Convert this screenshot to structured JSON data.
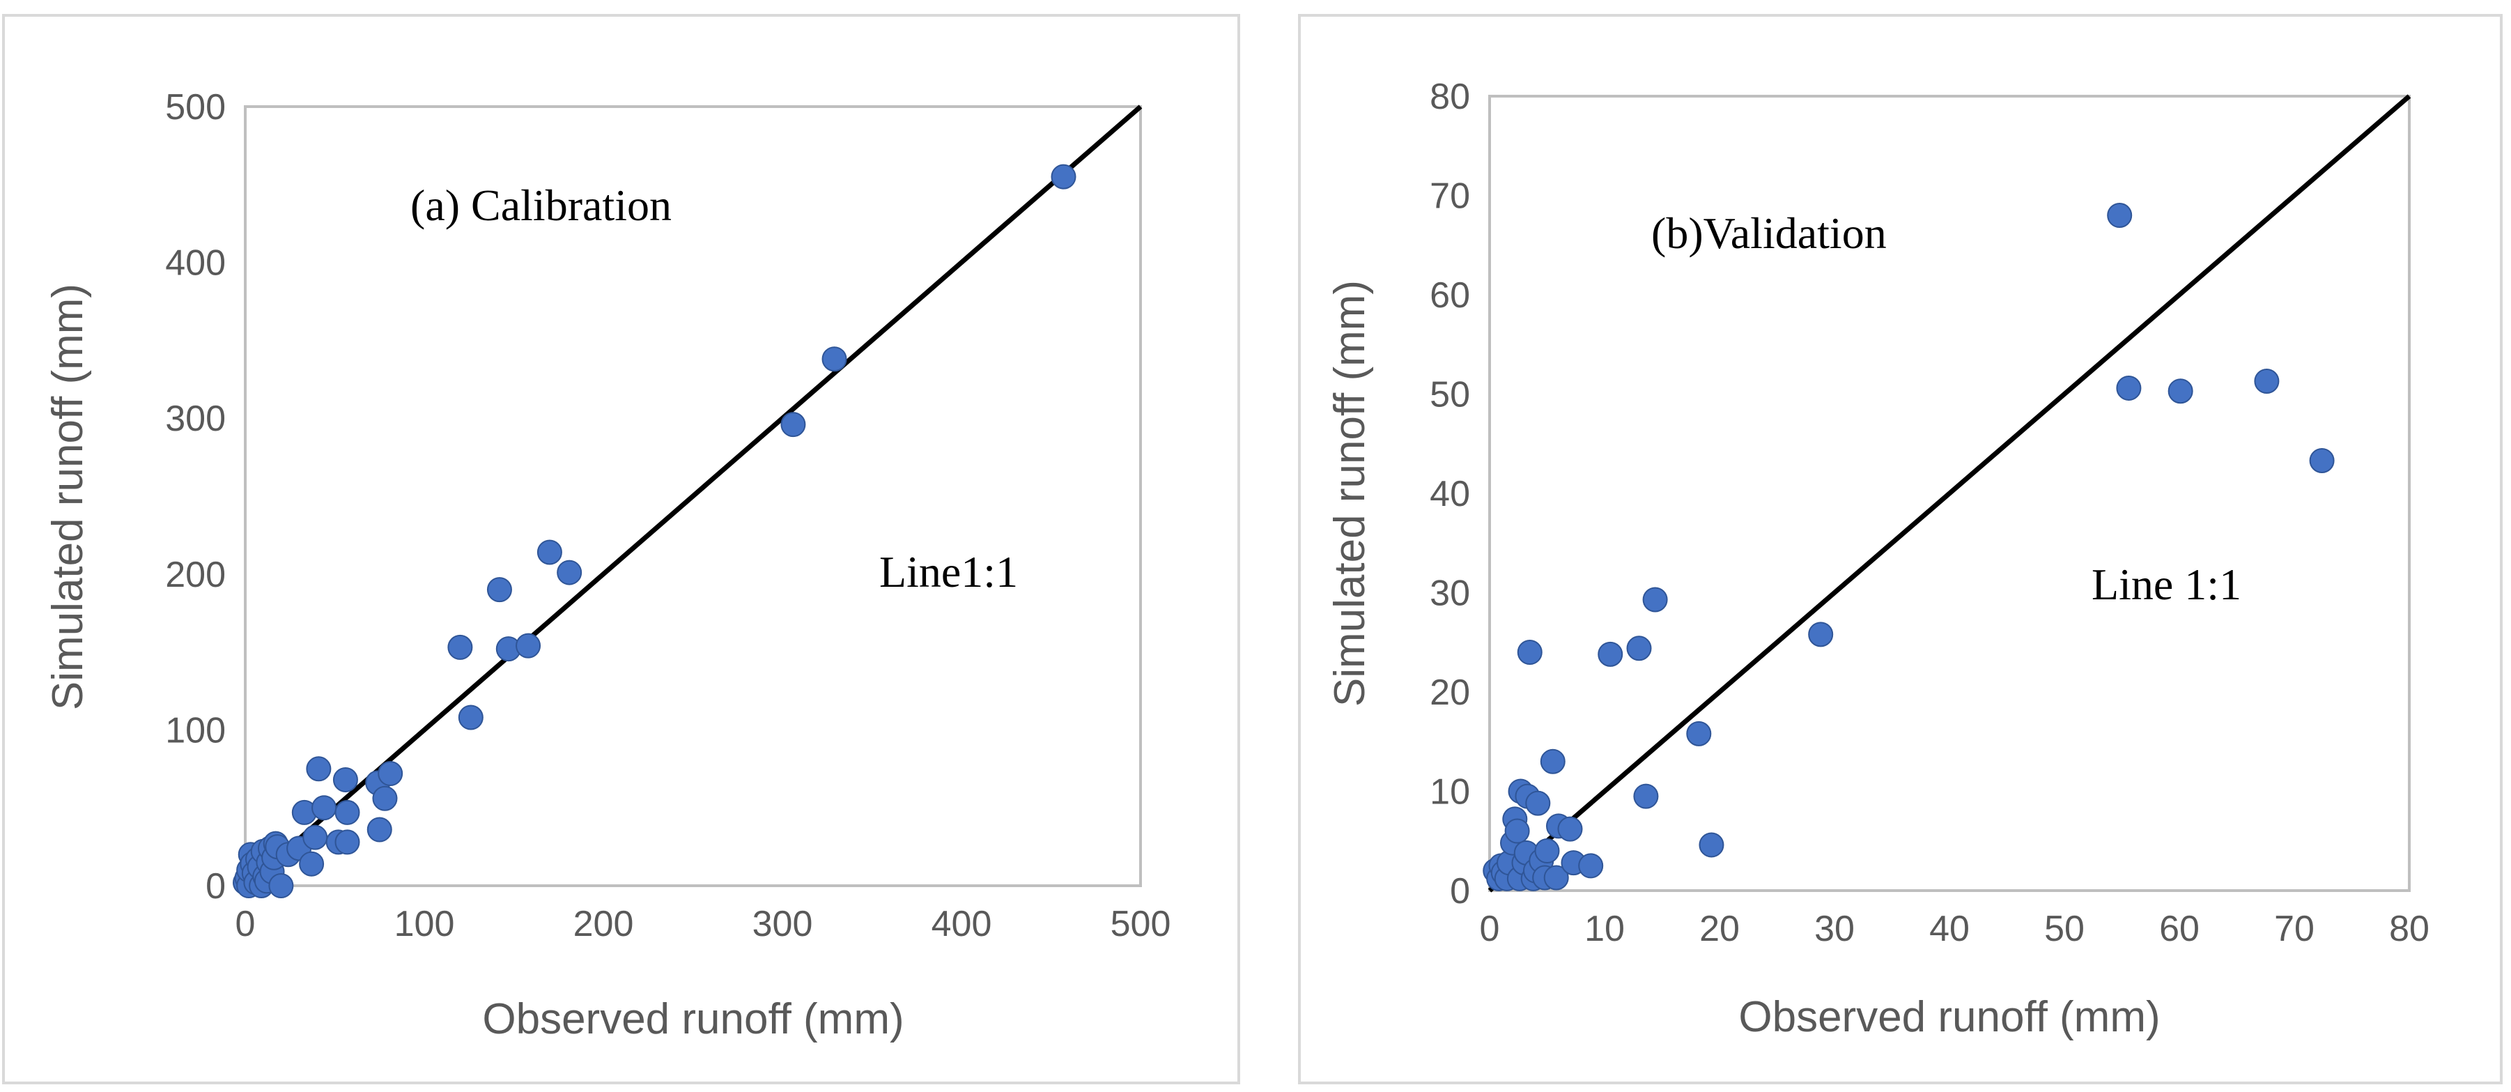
{
  "colors": {
    "point": "#4472C4",
    "point_edge": "#2F5597",
    "line": "#000000",
    "frame": "#D9D9D9",
    "plot_border": "#BFBFBF",
    "text": "#595959"
  },
  "chart_data": [
    {
      "type": "scatter",
      "title": "(a) Calibration",
      "annotation": "Line1:1",
      "xlabel": "Observed runoff (mm)",
      "ylabel": "Simulated runoff (mm)",
      "xlim": [
        0,
        500
      ],
      "ylim": [
        0,
        500
      ],
      "xticks": [
        0,
        100,
        200,
        300,
        400,
        500
      ],
      "yticks": [
        0,
        100,
        200,
        300,
        400,
        500
      ],
      "xtick_labels": [
        "0",
        "100",
        "200",
        "300",
        "400",
        "500"
      ],
      "ytick_labels": [
        "0",
        "100",
        "200",
        "300",
        "400",
        "500"
      ],
      "reference_line": {
        "name": "1:1 line",
        "x": [
          0,
          500
        ],
        "y": [
          0,
          500
        ]
      },
      "series": [
        {
          "name": "Calibration",
          "points": [
            [
              0,
              2
            ],
            [
              1,
              5
            ],
            [
              2,
              0
            ],
            [
              2,
              10
            ],
            [
              3,
              20
            ],
            [
              4,
              14
            ],
            [
              5,
              8
            ],
            [
              6,
              2
            ],
            [
              7,
              17
            ],
            [
              8,
              12
            ],
            [
              9,
              0
            ],
            [
              10,
              22
            ],
            [
              11,
              6
            ],
            [
              12,
              3
            ],
            [
              13,
              15
            ],
            [
              14,
              24
            ],
            [
              15,
              9
            ],
            [
              16,
              18
            ],
            [
              17,
              27
            ],
            [
              18,
              25
            ],
            [
              20,
              0
            ],
            [
              24,
              20
            ],
            [
              30,
              24
            ],
            [
              33,
              47
            ],
            [
              37,
              14
            ],
            [
              39,
              31
            ],
            [
              41,
              75
            ],
            [
              44,
              50
            ],
            [
              52,
              28
            ],
            [
              56,
              68
            ],
            [
              57,
              47
            ],
            [
              57,
              28
            ],
            [
              74,
              66
            ],
            [
              75,
              36
            ],
            [
              78,
              56
            ],
            [
              81,
              72
            ],
            [
              120,
              153
            ],
            [
              126,
              108
            ],
            [
              142,
              190
            ],
            [
              147,
              152
            ],
            [
              158,
              154
            ],
            [
              170,
              214
            ],
            [
              181,
              201
            ],
            [
              306,
              296
            ],
            [
              329,
              338
            ],
            [
              457,
              455
            ]
          ]
        }
      ]
    },
    {
      "type": "scatter",
      "title": "(b)Validation",
      "annotation": "Line 1:1",
      "xlabel": "Observed runoff (mm)",
      "ylabel": "Simulated runoff (mm)",
      "xlim": [
        0,
        80
      ],
      "ylim": [
        0,
        80
      ],
      "xticks": [
        0,
        10,
        20,
        30,
        40,
        50,
        60,
        70,
        80
      ],
      "yticks": [
        0,
        10,
        20,
        30,
        40,
        50,
        60,
        70,
        80
      ],
      "xtick_labels": [
        "0",
        "10",
        "20",
        "30",
        "40",
        "50",
        "60",
        "70",
        "80"
      ],
      "ytick_labels": [
        "0",
        "10",
        "20",
        "30",
        "40",
        "50",
        "60",
        "70",
        "80"
      ],
      "reference_line": {
        "name": "1:1 line",
        "x": [
          0,
          80
        ],
        "y": [
          0,
          80
        ]
      },
      "series": [
        {
          "name": "Validation",
          "points": [
            [
              0.5,
              2.0
            ],
            [
              0.8,
              1.2
            ],
            [
              1.0,
              2.5
            ],
            [
              1.2,
              1.8
            ],
            [
              1.5,
              1.2
            ],
            [
              1.7,
              2.8
            ],
            [
              2.0,
              4.8
            ],
            [
              2.2,
              7.2
            ],
            [
              2.4,
              6.0
            ],
            [
              2.6,
              1.2
            ],
            [
              2.7,
              10.0
            ],
            [
              3.0,
              2.8
            ],
            [
              3.2,
              3.8
            ],
            [
              3.3,
              9.5
            ],
            [
              3.5,
              24.0
            ],
            [
              3.8,
              1.2
            ],
            [
              4.0,
              2.0
            ],
            [
              4.2,
              8.8
            ],
            [
              4.5,
              3.0
            ],
            [
              4.8,
              1.3
            ],
            [
              5.0,
              4.0
            ],
            [
              5.5,
              13.0
            ],
            [
              5.8,
              1.3
            ],
            [
              6.0,
              6.5
            ],
            [
              7.0,
              6.2
            ],
            [
              7.3,
              2.8
            ],
            [
              8.8,
              2.5
            ],
            [
              10.5,
              23.8
            ],
            [
              13.0,
              24.4
            ],
            [
              13.6,
              9.5
            ],
            [
              14.4,
              29.3
            ],
            [
              18.2,
              15.8
            ],
            [
              19.3,
              4.6
            ],
            [
              28.8,
              25.8
            ],
            [
              54.8,
              68.0
            ],
            [
              55.6,
              50.6
            ],
            [
              60.1,
              50.3
            ],
            [
              67.6,
              51.3
            ],
            [
              72.4,
              43.3
            ]
          ]
        }
      ]
    }
  ]
}
